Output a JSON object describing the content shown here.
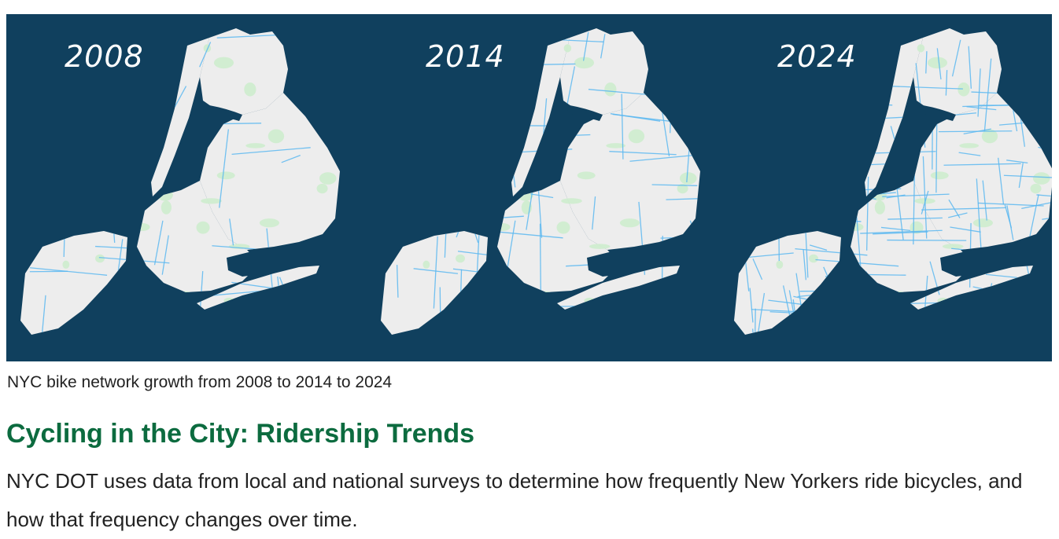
{
  "figure": {
    "panels": [
      {
        "year": "2008",
        "network_density": 0.25
      },
      {
        "year": "2014",
        "network_density": 0.55
      },
      {
        "year": "2024",
        "network_density": 1.0
      }
    ],
    "colors": {
      "background": "#10405e",
      "land": "#ededed",
      "parks": "#cdeccd",
      "bike_lanes": "#5bb8f0"
    },
    "caption": "NYC bike network growth from 2008 to 2014 to 2024"
  },
  "section": {
    "heading": "Cycling in the City: Ridership Trends",
    "heading_color": "#0c6b3f",
    "body": "NYC DOT uses data from local and national surveys to determine how frequently New Yorkers ride bicycles, and how that frequency changes over time."
  }
}
